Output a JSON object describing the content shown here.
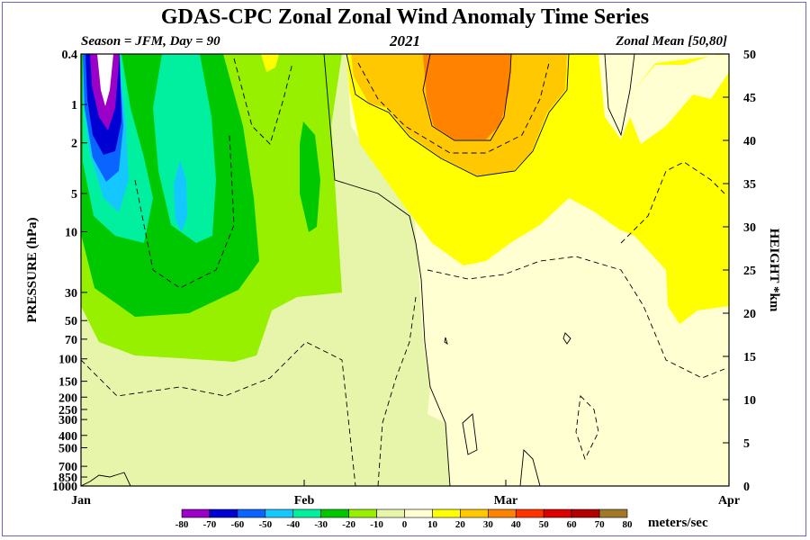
{
  "header": {
    "title": "GDAS-CPC Zonal Zonal Wind Anomaly Time Series",
    "left_sub": "Season = JFM, Day =  90",
    "center_sub": "2021",
    "right_sub": "Zonal Mean [50,80]"
  },
  "chart_data": {
    "type": "heatmap",
    "title": "GDAS-CPC Zonal Zonal Wind Anomaly Time Series",
    "xlabel": "",
    "ylabel_left": "PRESSURE (hPa)",
    "ylabel_right": "HEIGHT *km",
    "x_ticks": [
      "Jan",
      "Feb",
      "Mar",
      "Apr"
    ],
    "x_range_days": [
      1,
      90
    ],
    "pressure_ticks": [
      "0.4",
      "1",
      "2",
      "5",
      "10",
      "30",
      "50",
      "70",
      "100",
      "150",
      "200",
      "250",
      "300",
      "400",
      "500",
      "700",
      "850",
      "1000"
    ],
    "height_ticks": [
      "0",
      "5",
      "10",
      "15",
      "20",
      "25",
      "30",
      "35",
      "40",
      "45",
      "50"
    ],
    "colorbar": {
      "units": "meters/sec",
      "levels": [
        "-80",
        "-70",
        "-60",
        "-50",
        "-40",
        "-30",
        "-20",
        "-10",
        "0",
        "10",
        "20",
        "30",
        "40",
        "50",
        "60",
        "70",
        "80"
      ],
      "colors": [
        "#9b00c8",
        "#0000d2",
        "#0a64ff",
        "#14c8ff",
        "#00f0a0",
        "#00c800",
        "#96f000",
        "#e6f5aa",
        "#ffffd2",
        "#ffff00",
        "#ffc800",
        "#ff8200",
        "#ff3200",
        "#dc0000",
        "#b40000",
        "#a07828"
      ]
    },
    "contour_interval": 10,
    "notes": "Anomaly fields: strong negative core near day 1-5 upper levels, positive 30-40 m/s core around early March upper levels"
  }
}
